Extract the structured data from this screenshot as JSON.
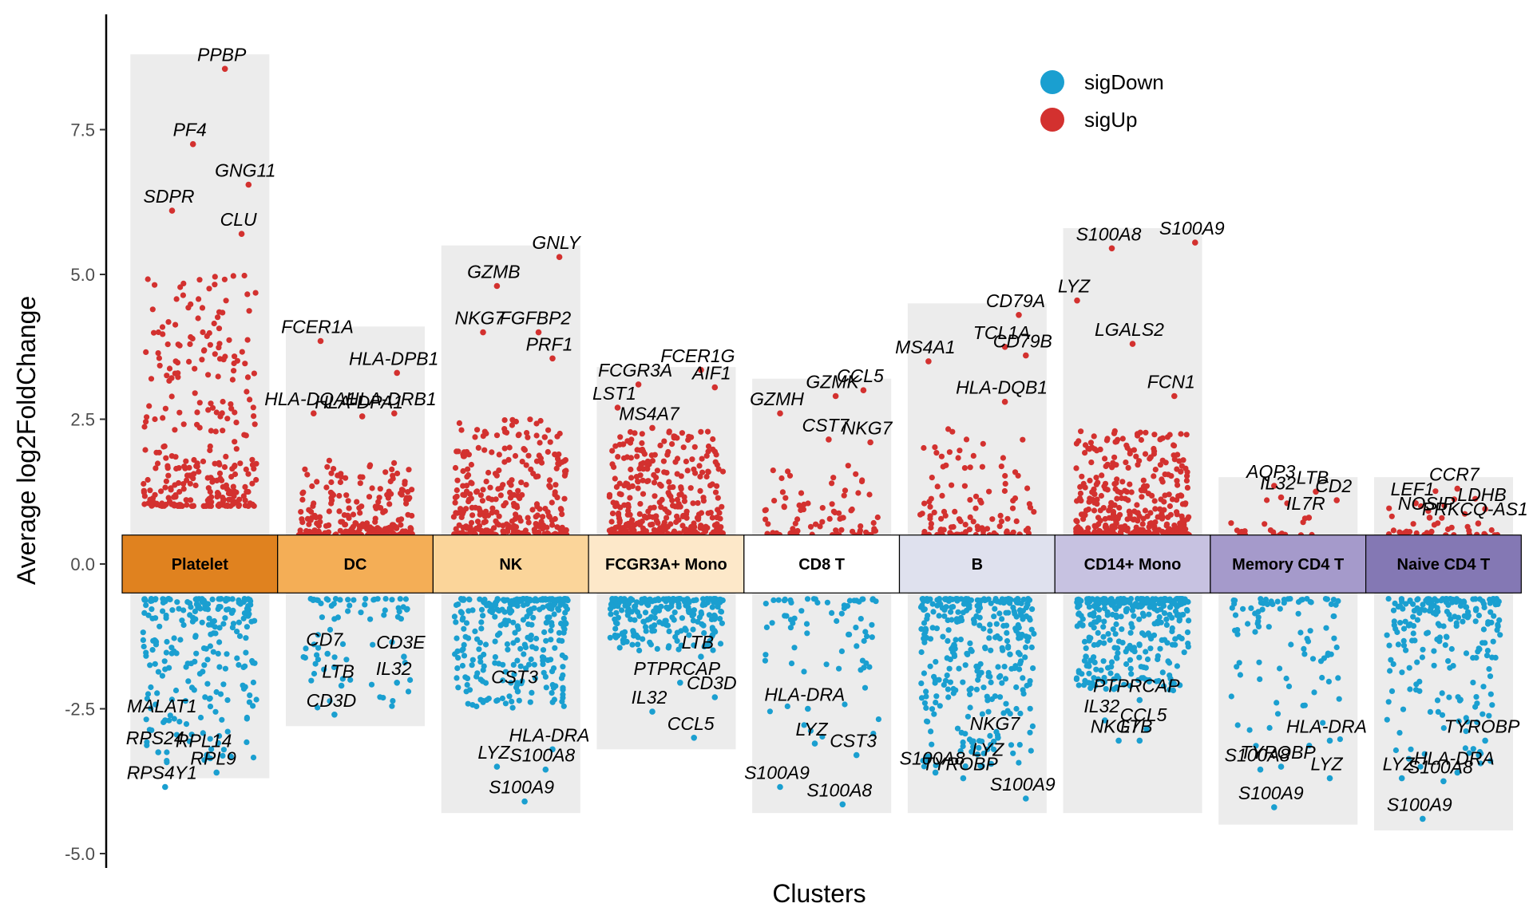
{
  "chart_data": {
    "type": "scatter",
    "title": "",
    "xlabel": "Clusters",
    "ylabel": "Average log2FoldChange",
    "ylim": [
      -5.1,
      9.0
    ],
    "yticks": [
      -5.0,
      -2.5,
      0.0,
      2.5,
      5.0,
      7.5
    ],
    "ytick_labels": [
      "-5.0",
      "-2.5",
      "0.0",
      "2.5",
      "5.0",
      "7.5"
    ],
    "grid": false,
    "legend": {
      "position": "top-right",
      "entries": [
        {
          "name": "sigDown",
          "color": "#1a9fd0"
        },
        {
          "name": "sigUp",
          "color": "#d3312f"
        }
      ]
    },
    "tile_range": [
      -0.5,
      0.5
    ],
    "categories": [
      "Platelet",
      "DC",
      "NK",
      "FCGR3A+ Mono",
      "CD8 T",
      "B",
      "CD14+ Mono",
      "Memory CD4 T",
      "Naive CD4 T"
    ],
    "cluster_colors": [
      "#e0821f",
      "#f4ae56",
      "#fbd59a",
      "#fde8c9",
      "#ffffff",
      "#dfe1ee",
      "#c7c2e1",
      "#a59acb",
      "#8478b4"
    ],
    "background_ranges": [
      {
        "cluster": "Platelet",
        "ymin": -3.7,
        "ymax": 8.8
      },
      {
        "cluster": "DC",
        "ymin": -2.8,
        "ymax": 4.1
      },
      {
        "cluster": "NK",
        "ymin": -4.3,
        "ymax": 5.5
      },
      {
        "cluster": "FCGR3A+ Mono",
        "ymin": -3.2,
        "ymax": 3.4
      },
      {
        "cluster": "CD8 T",
        "ymin": -4.3,
        "ymax": 3.2
      },
      {
        "cluster": "B",
        "ymin": -4.3,
        "ymax": 4.5
      },
      {
        "cluster": "CD14+ Mono",
        "ymin": -4.3,
        "ymax": 5.8
      },
      {
        "cluster": "Memory CD4 T",
        "ymin": -4.5,
        "ymax": 1.5
      },
      {
        "cluster": "Naive CD4 T",
        "ymin": -4.6,
        "ymax": 1.5
      }
    ],
    "point_summary": [
      {
        "cluster": "Platelet",
        "up": {
          "count": 300,
          "min": 1.0,
          "max": 5.0
        },
        "down": {
          "count": 230,
          "min": -3.6,
          "max": -0.6
        }
      },
      {
        "cluster": "DC",
        "up": {
          "count": 220,
          "min": 0.5,
          "max": 1.8
        },
        "down": {
          "count": 70,
          "min": -2.5,
          "max": -0.6
        }
      },
      {
        "cluster": "NK",
        "up": {
          "count": 300,
          "min": 0.5,
          "max": 2.5
        },
        "down": {
          "count": 280,
          "min": -2.5,
          "max": -0.6
        }
      },
      {
        "cluster": "FCGR3A+ Mono",
        "up": {
          "count": 350,
          "min": 0.5,
          "max": 2.3
        },
        "down": {
          "count": 230,
          "min": -1.5,
          "max": -0.6
        }
      },
      {
        "cluster": "CD8 T",
        "up": {
          "count": 80,
          "min": 0.5,
          "max": 1.7
        },
        "down": {
          "count": 70,
          "min": -3.0,
          "max": -0.6
        }
      },
      {
        "cluster": "B",
        "up": {
          "count": 110,
          "min": 0.5,
          "max": 2.4
        },
        "down": {
          "count": 330,
          "min": -3.5,
          "max": -0.6
        }
      },
      {
        "cluster": "CD14+ Mono",
        "up": {
          "count": 380,
          "min": 0.5,
          "max": 2.3
        },
        "down": {
          "count": 320,
          "min": -2.2,
          "max": -0.6
        }
      },
      {
        "cluster": "Memory CD4 T",
        "up": {
          "count": 20,
          "min": 0.5,
          "max": 1.2
        },
        "down": {
          "count": 90,
          "min": -3.2,
          "max": -0.6
        }
      },
      {
        "cluster": "Naive CD4 T",
        "up": {
          "count": 40,
          "min": 0.5,
          "max": 1.3
        },
        "down": {
          "count": 210,
          "min": -3.5,
          "max": -0.6
        }
      }
    ],
    "points": [
      {
        "cluster": "Platelet",
        "gene": "PPBP",
        "x": 0.18,
        "y": 8.55,
        "dir": "sigUp"
      },
      {
        "cluster": "Platelet",
        "gene": "PF4",
        "x": -0.05,
        "y": 7.25,
        "dir": "sigUp"
      },
      {
        "cluster": "Platelet",
        "gene": "GNG11",
        "x": 0.35,
        "y": 6.55,
        "dir": "sigUp"
      },
      {
        "cluster": "Platelet",
        "gene": "SDPR",
        "x": -0.2,
        "y": 6.1,
        "dir": "sigUp"
      },
      {
        "cluster": "Platelet",
        "gene": "CLU",
        "x": 0.3,
        "y": 5.7,
        "dir": "sigUp"
      },
      {
        "cluster": "Platelet",
        "gene": "MALAT1",
        "x": -0.25,
        "y": -2.7,
        "dir": "sigDown"
      },
      {
        "cluster": "Platelet",
        "gene": "RPL14",
        "x": 0.05,
        "y": -3.3,
        "dir": "sigDown"
      },
      {
        "cluster": "Platelet",
        "gene": "RPS24",
        "x": -0.3,
        "y": -3.25,
        "dir": "sigDown"
      },
      {
        "cluster": "Platelet",
        "gene": "RPL9",
        "x": 0.12,
        "y": -3.6,
        "dir": "sigDown"
      },
      {
        "cluster": "Platelet",
        "gene": "RPS4Y1",
        "x": -0.25,
        "y": -3.85,
        "dir": "sigDown"
      },
      {
        "cluster": "DC",
        "gene": "FCER1A",
        "x": -0.25,
        "y": 3.85,
        "dir": "sigUp"
      },
      {
        "cluster": "DC",
        "gene": "HLA-DPB1",
        "x": 0.3,
        "y": 3.3,
        "dir": "sigUp"
      },
      {
        "cluster": "DC",
        "gene": "HLA-DQA1",
        "x": -0.3,
        "y": 2.6,
        "dir": "sigUp"
      },
      {
        "cluster": "DC",
        "gene": "HLA-DRB1",
        "x": 0.28,
        "y": 2.6,
        "dir": "sigUp"
      },
      {
        "cluster": "DC",
        "gene": "HLA-DPA1",
        "x": 0.05,
        "y": 2.55,
        "dir": "sigUp"
      },
      {
        "cluster": "DC",
        "gene": "CD7",
        "x": -0.2,
        "y": -1.55,
        "dir": "sigDown"
      },
      {
        "cluster": "DC",
        "gene": "CD3E",
        "x": 0.35,
        "y": -1.6,
        "dir": "sigDown"
      },
      {
        "cluster": "DC",
        "gene": "LTB",
        "x": -0.1,
        "y": -2.1,
        "dir": "sigDown"
      },
      {
        "cluster": "DC",
        "gene": "IL32",
        "x": 0.3,
        "y": -2.05,
        "dir": "sigDown"
      },
      {
        "cluster": "DC",
        "gene": "CD3D",
        "x": -0.15,
        "y": -2.6,
        "dir": "sigDown"
      },
      {
        "cluster": "NK",
        "gene": "GNLY",
        "x": 0.35,
        "y": 5.3,
        "dir": "sigUp"
      },
      {
        "cluster": "NK",
        "gene": "GZMB",
        "x": -0.1,
        "y": 4.8,
        "dir": "sigUp"
      },
      {
        "cluster": "NK",
        "gene": "NKG7",
        "x": -0.2,
        "y": 4.0,
        "dir": "sigUp"
      },
      {
        "cluster": "NK",
        "gene": "FGFBP2",
        "x": 0.2,
        "y": 4.0,
        "dir": "sigUp"
      },
      {
        "cluster": "NK",
        "gene": "PRF1",
        "x": 0.3,
        "y": 3.55,
        "dir": "sigUp"
      },
      {
        "cluster": "NK",
        "gene": "CST3",
        "x": 0.05,
        "y": -2.2,
        "dir": "sigDown"
      },
      {
        "cluster": "NK",
        "gene": "LYZ",
        "x": -0.1,
        "y": -3.5,
        "dir": "sigDown"
      },
      {
        "cluster": "NK",
        "gene": "HLA-DRA",
        "x": 0.3,
        "y": -3.2,
        "dir": "sigDown"
      },
      {
        "cluster": "NK",
        "gene": "S100A8",
        "x": 0.25,
        "y": -3.55,
        "dir": "sigDown"
      },
      {
        "cluster": "NK",
        "gene": "S100A9",
        "x": 0.1,
        "y": -4.1,
        "dir": "sigDown"
      },
      {
        "cluster": "FCGR3A+ Mono",
        "gene": "FCGR3A",
        "x": -0.2,
        "y": 3.1,
        "dir": "sigUp"
      },
      {
        "cluster": "FCGR3A+ Mono",
        "gene": "FCER1G",
        "x": 0.25,
        "y": 3.35,
        "dir": "sigUp"
      },
      {
        "cluster": "FCGR3A+ Mono",
        "gene": "LST1",
        "x": -0.35,
        "y": 2.7,
        "dir": "sigUp"
      },
      {
        "cluster": "FCGR3A+ Mono",
        "gene": "AIF1",
        "x": 0.35,
        "y": 3.05,
        "dir": "sigUp"
      },
      {
        "cluster": "FCGR3A+ Mono",
        "gene": "MS4A7",
        "x": -0.1,
        "y": 2.35,
        "dir": "sigUp"
      },
      {
        "cluster": "FCGR3A+ Mono",
        "gene": "PTPRCAP",
        "x": 0.1,
        "y": -2.05,
        "dir": "sigDown"
      },
      {
        "cluster": "FCGR3A+ Mono",
        "gene": "LTB",
        "x": 0.25,
        "y": -1.6,
        "dir": "sigDown"
      },
      {
        "cluster": "FCGR3A+ Mono",
        "gene": "CD3D",
        "x": 0.35,
        "y": -2.3,
        "dir": "sigDown"
      },
      {
        "cluster": "FCGR3A+ Mono",
        "gene": "IL32",
        "x": -0.1,
        "y": -2.55,
        "dir": "sigDown"
      },
      {
        "cluster": "FCGR3A+ Mono",
        "gene": "CCL5",
        "x": 0.2,
        "y": -3.0,
        "dir": "sigDown"
      },
      {
        "cluster": "CD8 T",
        "gene": "CCL5",
        "x": 0.3,
        "y": 3.0,
        "dir": "sigUp"
      },
      {
        "cluster": "CD8 T",
        "gene": "GZMK",
        "x": 0.1,
        "y": 2.9,
        "dir": "sigUp"
      },
      {
        "cluster": "CD8 T",
        "gene": "GZMH",
        "x": -0.3,
        "y": 2.6,
        "dir": "sigUp"
      },
      {
        "cluster": "CD8 T",
        "gene": "NKG7",
        "x": 0.35,
        "y": 2.1,
        "dir": "sigUp"
      },
      {
        "cluster": "CD8 T",
        "gene": "CST7",
        "x": 0.05,
        "y": 2.15,
        "dir": "sigUp"
      },
      {
        "cluster": "CD8 T",
        "gene": "HLA-DRA",
        "x": -0.1,
        "y": -2.5,
        "dir": "sigDown"
      },
      {
        "cluster": "CD8 T",
        "gene": "LYZ",
        "x": -0.05,
        "y": -3.1,
        "dir": "sigDown"
      },
      {
        "cluster": "CD8 T",
        "gene": "CST3",
        "x": 0.25,
        "y": -3.3,
        "dir": "sigDown"
      },
      {
        "cluster": "CD8 T",
        "gene": "S100A9",
        "x": -0.3,
        "y": -3.85,
        "dir": "sigDown"
      },
      {
        "cluster": "CD8 T",
        "gene": "S100A8",
        "x": 0.15,
        "y": -4.15,
        "dir": "sigDown"
      },
      {
        "cluster": "B",
        "gene": "CD79A",
        "x": 0.3,
        "y": 4.3,
        "dir": "sigUp"
      },
      {
        "cluster": "B",
        "gene": "TCL1A",
        "x": 0.2,
        "y": 3.75,
        "dir": "sigUp"
      },
      {
        "cluster": "B",
        "gene": "MS4A1",
        "x": -0.35,
        "y": 3.5,
        "dir": "sigUp"
      },
      {
        "cluster": "B",
        "gene": "CD79B",
        "x": 0.35,
        "y": 3.6,
        "dir": "sigUp"
      },
      {
        "cluster": "B",
        "gene": "HLA-DQB1",
        "x": 0.2,
        "y": 2.8,
        "dir": "sigUp"
      },
      {
        "cluster": "B",
        "gene": "NKG7",
        "x": 0.15,
        "y": -3.0,
        "dir": "sigDown"
      },
      {
        "cluster": "B",
        "gene": "TYROBP",
        "x": -0.1,
        "y": -3.7,
        "dir": "sigDown"
      },
      {
        "cluster": "B",
        "gene": "LYZ",
        "x": 0.1,
        "y": -3.45,
        "dir": "sigDown"
      },
      {
        "cluster": "B",
        "gene": "S100A8",
        "x": -0.3,
        "y": -3.6,
        "dir": "sigDown"
      },
      {
        "cluster": "B",
        "gene": "S100A9",
        "x": 0.35,
        "y": -4.05,
        "dir": "sigDown"
      },
      {
        "cluster": "CD14+ Mono",
        "gene": "S100A9",
        "x": 0.45,
        "y": 5.55,
        "dir": "sigUp"
      },
      {
        "cluster": "CD14+ Mono",
        "gene": "S100A8",
        "x": -0.15,
        "y": 5.45,
        "dir": "sigUp"
      },
      {
        "cluster": "CD14+ Mono",
        "gene": "LYZ",
        "x": -0.4,
        "y": 4.55,
        "dir": "sigUp"
      },
      {
        "cluster": "CD14+ Mono",
        "gene": "LGALS2",
        "x": 0.0,
        "y": 3.8,
        "dir": "sigUp"
      },
      {
        "cluster": "CD14+ Mono",
        "gene": "FCN1",
        "x": 0.3,
        "y": 2.9,
        "dir": "sigUp"
      },
      {
        "cluster": "CD14+ Mono",
        "gene": "PTPRCAP",
        "x": 0.05,
        "y": -2.35,
        "dir": "sigDown"
      },
      {
        "cluster": "CD14+ Mono",
        "gene": "IL32",
        "x": -0.2,
        "y": -2.7,
        "dir": "sigDown"
      },
      {
        "cluster": "CD14+ Mono",
        "gene": "NKG7",
        "x": -0.1,
        "y": -3.05,
        "dir": "sigDown"
      },
      {
        "cluster": "CD14+ Mono",
        "gene": "CCL5",
        "x": 0.1,
        "y": -2.85,
        "dir": "sigDown"
      },
      {
        "cluster": "CD14+ Mono",
        "gene": "LTB",
        "x": 0.05,
        "y": -3.05,
        "dir": "sigDown"
      },
      {
        "cluster": "Memory CD4 T",
        "gene": "AQP3",
        "x": -0.1,
        "y": 1.35,
        "dir": "sigUp"
      },
      {
        "cluster": "Memory CD4 T",
        "gene": "LTB",
        "x": 0.2,
        "y": 1.25,
        "dir": "sigUp"
      },
      {
        "cluster": "Memory CD4 T",
        "gene": "IL32",
        "x": -0.05,
        "y": 1.15,
        "dir": "sigUp"
      },
      {
        "cluster": "Memory CD4 T",
        "gene": "CD2",
        "x": 0.35,
        "y": 1.1,
        "dir": "sigUp"
      },
      {
        "cluster": "Memory CD4 T",
        "gene": "IL7R",
        "x": 0.15,
        "y": 0.8,
        "dir": "sigUp"
      },
      {
        "cluster": "Memory CD4 T",
        "gene": "HLA-DRA",
        "x": 0.3,
        "y": -3.05,
        "dir": "sigDown"
      },
      {
        "cluster": "Memory CD4 T",
        "gene": "TYROBP",
        "x": -0.05,
        "y": -3.5,
        "dir": "sigDown"
      },
      {
        "cluster": "Memory CD4 T",
        "gene": "LYZ",
        "x": 0.3,
        "y": -3.7,
        "dir": "sigDown"
      },
      {
        "cluster": "Memory CD4 T",
        "gene": "S100A8",
        "x": -0.2,
        "y": -3.55,
        "dir": "sigDown"
      },
      {
        "cluster": "Memory CD4 T",
        "gene": "S100A9",
        "x": -0.1,
        "y": -4.2,
        "dir": "sigDown"
      },
      {
        "cluster": "Naive CD4 T",
        "gene": "CCR7",
        "x": 0.1,
        "y": 1.3,
        "dir": "sigUp"
      },
      {
        "cluster": "Naive CD4 T",
        "gene": "LEF1",
        "x": -0.2,
        "y": 1.05,
        "dir": "sigUp"
      },
      {
        "cluster": "Naive CD4 T",
        "gene": "LDHB",
        "x": 0.3,
        "y": 0.95,
        "dir": "sigUp"
      },
      {
        "cluster": "Naive CD4 T",
        "gene": "NOSIP",
        "x": -0.1,
        "y": 0.8,
        "dir": "sigUp"
      },
      {
        "cluster": "Naive CD4 T",
        "gene": "PRKCQ-AS1",
        "x": 0.25,
        "y": 0.7,
        "dir": "sigUp"
      },
      {
        "cluster": "Naive CD4 T",
        "gene": "TYROBP",
        "x": 0.3,
        "y": -3.05,
        "dir": "sigDown"
      },
      {
        "cluster": "Naive CD4 T",
        "gene": "LYZ",
        "x": -0.3,
        "y": -3.7,
        "dir": "sigDown"
      },
      {
        "cluster": "Naive CD4 T",
        "gene": "S100A8",
        "x": 0.0,
        "y": -3.75,
        "dir": "sigDown"
      },
      {
        "cluster": "Naive CD4 T",
        "gene": "HLA-DRA",
        "x": 0.1,
        "y": -3.6,
        "dir": "sigDown"
      },
      {
        "cluster": "Naive CD4 T",
        "gene": "S100A9",
        "x": -0.15,
        "y": -4.4,
        "dir": "sigDown"
      }
    ]
  }
}
